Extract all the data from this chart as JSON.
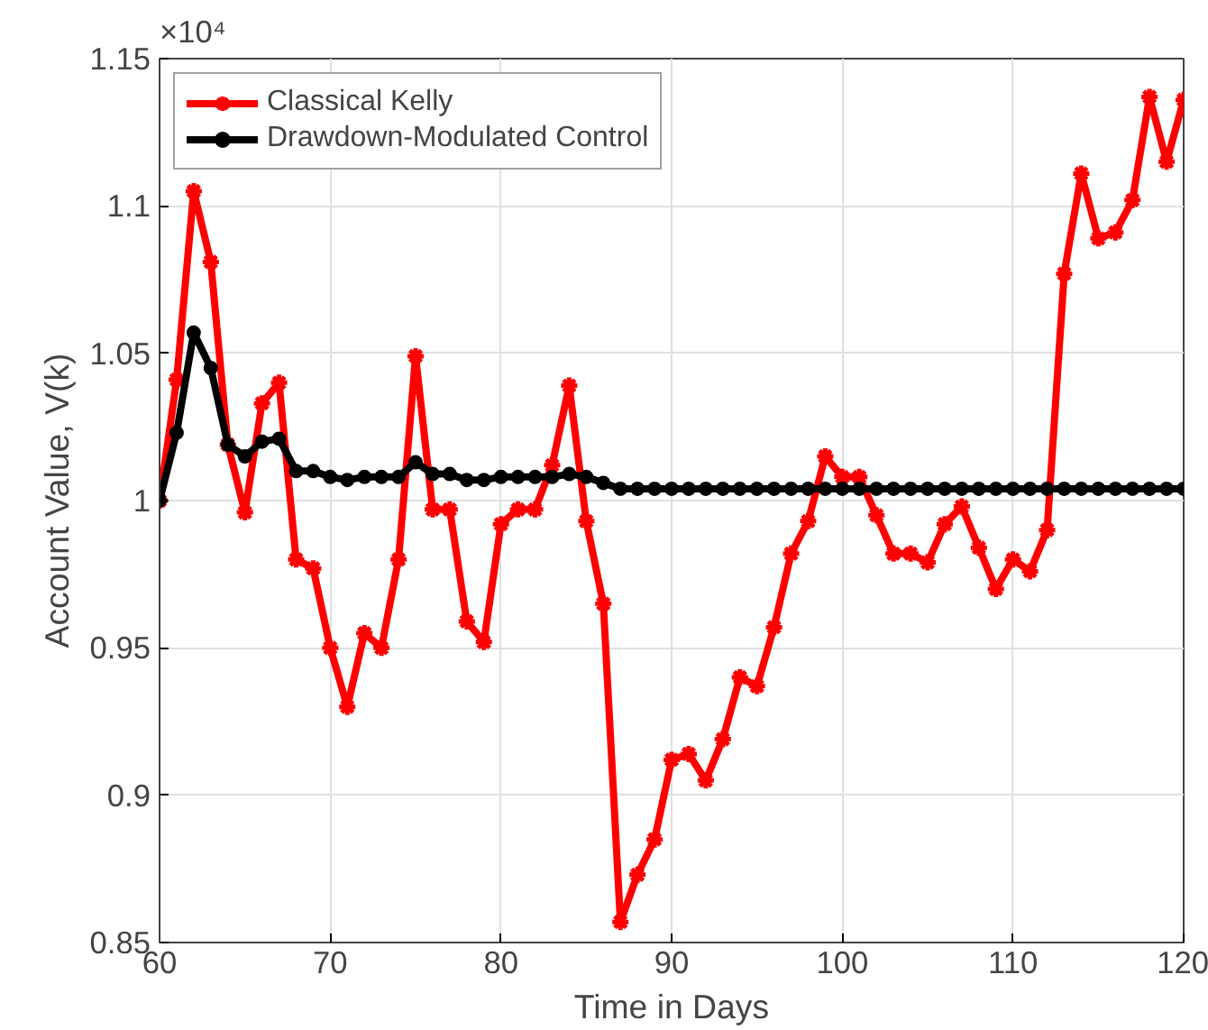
{
  "chart_data": {
    "type": "line",
    "xlabel": "Time in Days",
    "ylabel": "Account Value, V(k)",
    "annotations": [
      "×10⁴"
    ],
    "x": [
      60,
      61,
      62,
      63,
      64,
      65,
      66,
      67,
      68,
      69,
      70,
      71,
      72,
      73,
      74,
      75,
      76,
      77,
      78,
      79,
      80,
      81,
      82,
      83,
      84,
      85,
      86,
      87,
      88,
      89,
      90,
      91,
      92,
      93,
      94,
      95,
      96,
      97,
      98,
      99,
      100,
      101,
      102,
      103,
      104,
      105,
      106,
      107,
      108,
      109,
      110,
      111,
      112,
      113,
      114,
      115,
      116,
      117,
      118,
      119,
      120
    ],
    "series": [
      {
        "name": "Classical Kelly",
        "color": "#ff0000",
        "marker": "cross",
        "values": [
          1.0,
          1.041,
          1.105,
          1.081,
          1.019,
          0.996,
          1.033,
          1.04,
          0.98,
          0.977,
          0.95,
          0.93,
          0.955,
          0.95,
          0.98,
          1.049,
          0.997,
          0.997,
          0.959,
          0.952,
          0.992,
          0.997,
          0.997,
          1.012,
          1.039,
          0.993,
          0.965,
          0.857,
          0.873,
          0.885,
          0.912,
          0.914,
          0.905,
          0.919,
          0.94,
          0.937,
          0.957,
          0.982,
          0.993,
          1.015,
          1.008,
          1.008,
          0.995,
          0.982,
          0.982,
          0.979,
          0.992,
          0.998,
          0.984,
          0.97,
          0.98,
          0.976,
          0.99,
          1.077,
          1.111,
          1.089,
          1.091,
          1.102,
          1.137,
          1.115,
          1.136
        ]
      },
      {
        "name": "Drawdown-Modulated Control",
        "color": "#000000",
        "marker": "circle",
        "values": [
          1.0,
          1.023,
          1.057,
          1.045,
          1.019,
          1.015,
          1.02,
          1.021,
          1.01,
          1.01,
          1.008,
          1.007,
          1.008,
          1.008,
          1.008,
          1.013,
          1.009,
          1.009,
          1.007,
          1.007,
          1.008,
          1.008,
          1.008,
          1.008,
          1.009,
          1.008,
          1.006,
          1.004,
          1.004,
          1.004,
          1.004,
          1.004,
          1.004,
          1.004,
          1.004,
          1.004,
          1.004,
          1.004,
          1.004,
          1.004,
          1.004,
          1.004,
          1.004,
          1.004,
          1.004,
          1.004,
          1.004,
          1.004,
          1.004,
          1.004,
          1.004,
          1.004,
          1.004,
          1.004,
          1.004,
          1.004,
          1.004,
          1.004,
          1.004,
          1.004,
          1.004
        ]
      }
    ],
    "xlim": [
      60,
      120
    ],
    "xticks": [
      60,
      70,
      80,
      90,
      100,
      110,
      120
    ],
    "ylim": [
      0.85,
      1.15
    ],
    "yticks": [
      0.85,
      0.9,
      0.95,
      1,
      1.05,
      1.1,
      1.15
    ],
    "grid": true,
    "legend": "top left",
    "line_style": "solid"
  }
}
